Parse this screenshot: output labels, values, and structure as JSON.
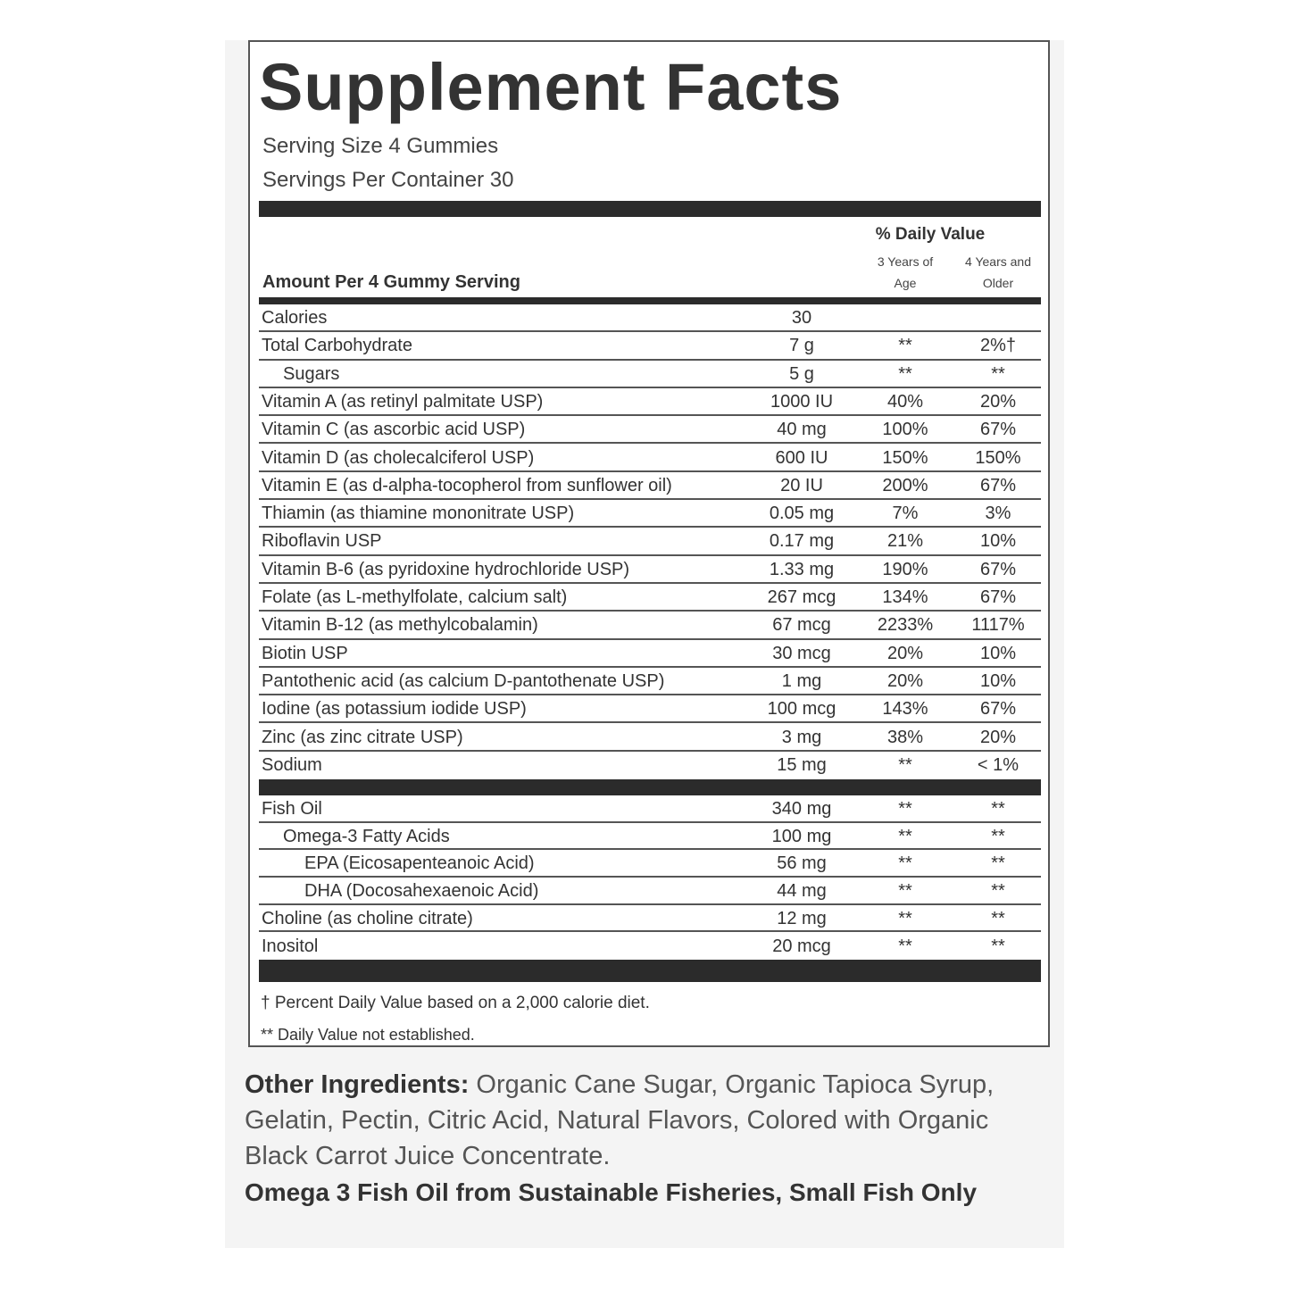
{
  "title": "Supplement Facts",
  "serving_size": "Serving Size 4 Gummies",
  "servings_per_container": "Servings Per Container 30",
  "header": {
    "amount_per": "Amount Per 4 Gummy Serving",
    "daily_value": "% Daily Value",
    "col_3y_line1": "3 Years of",
    "col_3y_line2": "Age",
    "col_4y_line1": "4 Years and",
    "col_4y_line2": "Older"
  },
  "rows": [
    {
      "name": "Calories",
      "amount": "30",
      "dv3": "",
      "dv4": "",
      "indent": 0
    },
    {
      "name": "Total Carbohydrate",
      "amount": "7 g",
      "dv3": "**",
      "dv4": "2%†",
      "indent": 0
    },
    {
      "name": "Sugars",
      "amount": "5 g",
      "dv3": "**",
      "dv4": "**",
      "indent": 1
    },
    {
      "name": "Vitamin A (as retinyl palmitate USP)",
      "amount": "1000 IU",
      "dv3": "40%",
      "dv4": "20%",
      "indent": 0
    },
    {
      "name": "Vitamin C (as ascorbic acid USP)",
      "amount": "40 mg",
      "dv3": "100%",
      "dv4": "67%",
      "indent": 0
    },
    {
      "name": "Vitamin D (as cholecalciferol USP)",
      "amount": "600 IU",
      "dv3": "150%",
      "dv4": "150%",
      "indent": 0
    },
    {
      "name": "Vitamin E (as d-alpha-tocopherol from sunflower oil)",
      "amount": "20 IU",
      "dv3": "200%",
      "dv4": "67%",
      "indent": 0
    },
    {
      "name": "Thiamin (as thiamine mononitrate USP)",
      "amount": "0.05 mg",
      "dv3": "7%",
      "dv4": "3%",
      "indent": 0
    },
    {
      "name": "Riboflavin USP",
      "amount": "0.17 mg",
      "dv3": "21%",
      "dv4": "10%",
      "indent": 0
    },
    {
      "name": "Vitamin B-6 (as pyridoxine hydrochloride USP)",
      "amount": "1.33 mg",
      "dv3": "190%",
      "dv4": "67%",
      "indent": 0
    },
    {
      "name": "Folate (as L-methylfolate, calcium salt)",
      "amount": "267 mcg",
      "dv3": "134%",
      "dv4": "67%",
      "indent": 0
    },
    {
      "name": "Vitamin B-12 (as methylcobalamin)",
      "amount": "67 mcg",
      "dv3": "2233%",
      "dv4": "1117%",
      "indent": 0
    },
    {
      "name": "Biotin USP",
      "amount": "30 mcg",
      "dv3": "20%",
      "dv4": "10%",
      "indent": 0
    },
    {
      "name": "Pantothenic acid (as calcium D-pantothenate USP)",
      "amount": "1 mg",
      "dv3": "20%",
      "dv4": "10%",
      "indent": 0
    },
    {
      "name": "Iodine (as potassium iodide USP)",
      "amount": "100 mcg",
      "dv3": "143%",
      "dv4": "67%",
      "indent": 0
    },
    {
      "name": "Zinc (as zinc citrate USP)",
      "amount": "3 mg",
      "dv3": "38%",
      "dv4": "20%",
      "indent": 0
    },
    {
      "name": "Sodium",
      "amount": "15 mg",
      "dv3": "**",
      "dv4": "< 1%",
      "indent": 0
    }
  ],
  "rows2": [
    {
      "name": "Fish Oil",
      "amount": "340 mg",
      "dv3": "**",
      "dv4": "**",
      "indent": 0
    },
    {
      "name": "Omega-3 Fatty Acids",
      "amount": "100 mg",
      "dv3": "**",
      "dv4": "**",
      "indent": 1
    },
    {
      "name": "EPA (Eicosapenteanoic Acid)",
      "amount": "56 mg",
      "dv3": "**",
      "dv4": "**",
      "indent": 2
    },
    {
      "name": "DHA (Docosahexaenoic Acid)",
      "amount": "44 mg",
      "dv3": "**",
      "dv4": "**",
      "indent": 2
    },
    {
      "name": "Choline (as choline citrate)",
      "amount": "12 mg",
      "dv3": "**",
      "dv4": "**",
      "indent": 0
    },
    {
      "name": "Inositol",
      "amount": "20 mcg",
      "dv3": "**",
      "dv4": "**",
      "indent": 0
    }
  ],
  "footnotes": [
    "† Percent Daily Value based on a 2,000 calorie diet.",
    "** Daily Value not established."
  ],
  "other_ingredients": {
    "label": "Other Ingredients:",
    "text": " Organic Cane Sugar, Organic Tapioca Syrup, Gelatin, Pectin, Citric Acid, Natural Flavors, Colored with Organic Black Carrot Juice Concentrate."
  },
  "omega_note": "Omega 3 Fish Oil from Sustainable Fisheries, Small Fish Only"
}
